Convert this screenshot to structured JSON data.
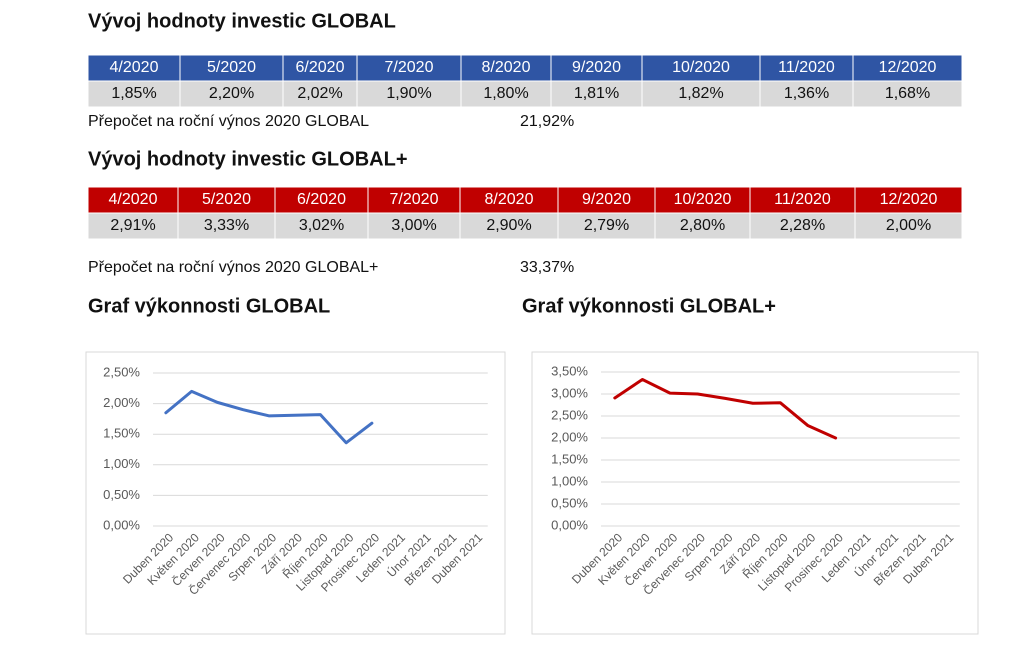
{
  "sections": [
    {
      "title": "Vývoj hodnoty investic GLOBAL",
      "header_color": "#2f55a4",
      "table": {
        "header": [
          "4/2020",
          "5/2020",
          "6/2020",
          "7/2020",
          "8/2020",
          "9/2020",
          "10/2020",
          "11/2020",
          "12/2020"
        ],
        "values": [
          "1,85%",
          "2,20%",
          "2,02%",
          "1,90%",
          "1,80%",
          "1,81%",
          "1,82%",
          "1,36%",
          "1,68%"
        ]
      },
      "note": "Přepočet na roční výnos 2020 GLOBAL",
      "note_value": "21,92%"
    },
    {
      "title": "Vývoj hodnoty investic GLOBAL+",
      "header_color": "#c00000",
      "table": {
        "header": [
          "4/2020",
          "5/2020",
          "6/2020",
          "7/2020",
          "8/2020",
          "9/2020",
          "10/2020",
          "11/2020",
          "12/2020"
        ],
        "values": [
          "2,91%",
          "3,33%",
          "3,02%",
          "3,00%",
          "2,90%",
          "2,79%",
          "2,80%",
          "2,28%",
          "2,00%"
        ]
      },
      "note": "Přepočet na roční výnos 2020 GLOBAL+",
      "note_value": "33,37%"
    }
  ],
  "chart_data": [
    {
      "type": "line",
      "title": "Graf výkonnosti GLOBAL",
      "color": "#4472c4",
      "categories": [
        "Duben 2020",
        "Květen 2020",
        "Červen 2020",
        "Červenec 2020",
        "Srpen 2020",
        "Září 2020",
        "Říjen 2020",
        "Listopad 2020",
        "Prosinec 2020",
        "Leden 2021",
        "Únor 2021",
        "Březen 2021",
        "Duben 2021"
      ],
      "values": [
        1.85,
        2.2,
        2.02,
        1.9,
        1.8,
        1.81,
        1.82,
        1.36,
        1.68,
        null,
        null,
        null,
        null
      ],
      "ylim": [
        0,
        2.5
      ],
      "yticks": [
        {
          "value": 0,
          "label": "0,00%"
        },
        {
          "value": 0.5,
          "label": "0,50%"
        },
        {
          "value": 1,
          "label": "1,00%"
        },
        {
          "value": 1.5,
          "label": "1,50%"
        },
        {
          "value": 2,
          "label": "2,00%"
        },
        {
          "value": 2.5,
          "label": "2,50%"
        }
      ],
      "grid": true
    },
    {
      "type": "line",
      "title": "Graf výkonnosti GLOBAL+",
      "color": "#c00000",
      "categories": [
        "Duben 2020",
        "Květen 2020",
        "Červen 2020",
        "Červenec 2020",
        "Srpen 2020",
        "Září 2020",
        "Říjen 2020",
        "Listopad 2020",
        "Prosinec 2020",
        "Leden 2021",
        "Únor 2021",
        "Březen 2021",
        "Duben 2021"
      ],
      "values": [
        2.91,
        3.33,
        3.02,
        3.0,
        2.9,
        2.79,
        2.8,
        2.28,
        2.0,
        null,
        null,
        null,
        null
      ],
      "ylim": [
        0,
        3.5
      ],
      "yticks": [
        {
          "value": 0,
          "label": "0,00%"
        },
        {
          "value": 0.5,
          "label": "0,50%"
        },
        {
          "value": 1,
          "label": "1,00%"
        },
        {
          "value": 1.5,
          "label": "1,50%"
        },
        {
          "value": 2,
          "label": "2,00%"
        },
        {
          "value": 2.5,
          "label": "2,50%"
        },
        {
          "value": 3,
          "label": "3,00%"
        },
        {
          "value": 3.5,
          "label": "3,50%"
        }
      ],
      "grid": true
    }
  ]
}
